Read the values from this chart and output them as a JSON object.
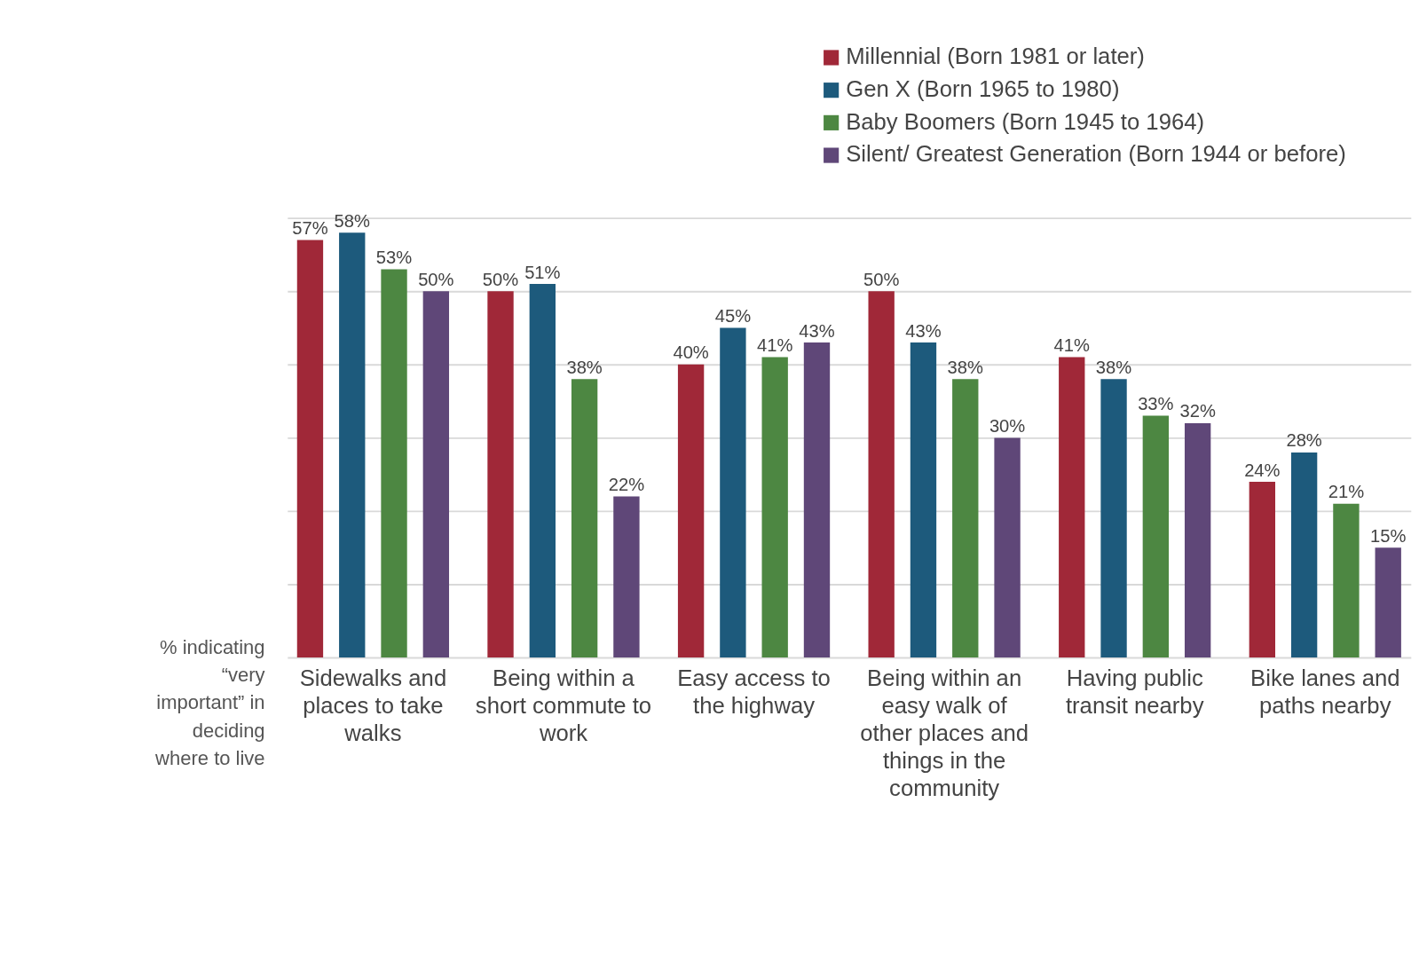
{
  "chart_data": {
    "type": "bar",
    "ylabel": "% indicating “very important” in deciding where to live",
    "categories": [
      "Sidewalks and places to take walks",
      "Being within a short commute to work",
      "Easy access to the highway",
      "Being within an easy walk of other places and things in the community",
      "Having public transit nearby",
      "Bike lanes and paths nearby"
    ],
    "series": [
      {
        "name": "Millennial (Born 1981 or later)",
        "color": "#a02838",
        "values": [
          57,
          50,
          40,
          50,
          41,
          24
        ],
        "value_labels": [
          "57%",
          "50%",
          "40%",
          "50%",
          "41%",
          "24%"
        ]
      },
      {
        "name": "Gen X (Born 1965 to 1980)",
        "color": "#1d5a7c",
        "values": [
          58,
          51,
          45,
          43,
          38,
          28
        ],
        "value_labels": [
          "58%",
          "51%",
          "45%",
          "43%",
          "38%",
          "28%"
        ]
      },
      {
        "name": "Baby Boomers (Born 1945 to 1964)",
        "color": "#4d8742",
        "values": [
          53,
          38,
          41,
          38,
          33,
          21
        ],
        "value_labels": [
          "53%",
          "38%",
          "41%",
          "38%",
          "33%",
          "21%"
        ]
      },
      {
        "name": "Silent/ Greatest Generation (Born 1944 or before)",
        "color": "#5f4778",
        "values": [
          50,
          22,
          43,
          30,
          32,
          15
        ],
        "value_labels": [
          "50%",
          "22%",
          "43%",
          "30%",
          "32%",
          "15%"
        ]
      }
    ],
    "tick_labels": "x",
    "grid": "y",
    "legend": "top right"
  }
}
